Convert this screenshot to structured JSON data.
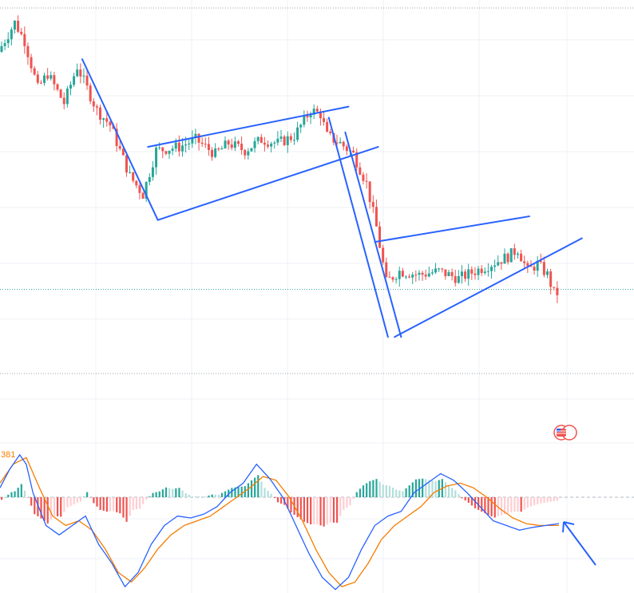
{
  "chart_data": [
    {
      "type": "candlestick",
      "title": "",
      "xlabel": "",
      "ylabel": "",
      "n_bars": 170,
      "ylim": [
        0,
        100
      ],
      "grid": true,
      "trend": {
        "bars": [
          0,
          5,
          8,
          12,
          15,
          20,
          24,
          30,
          34,
          40,
          44,
          48,
          55,
          60,
          66,
          70,
          75,
          80,
          85,
          90,
          95,
          98,
          100,
          104,
          108,
          112,
          115,
          118,
          122,
          128,
          134,
          140,
          145,
          150,
          155,
          158,
          161,
          164,
          167,
          169
        ],
        "values": [
          88,
          96,
          91,
          78,
          82,
          74,
          84,
          72,
          68,
          54,
          49,
          61,
          62,
          64,
          60,
          63,
          61,
          64,
          63,
          65,
          72,
          71,
          65,
          63,
          60,
          52,
          40,
          25,
          28,
          27,
          28,
          26,
          28,
          30,
          32,
          34,
          28,
          30,
          27,
          22
        ]
      },
      "channels": [
        {
          "name": "upper-1",
          "p1": [
            45,
            62
          ],
          "p2": [
            106,
            73
          ]
        },
        {
          "name": "lower-1",
          "p1": [
            48,
            42
          ],
          "p2": [
            115,
            62
          ]
        },
        {
          "name": "impulse-1",
          "p1": [
            25,
            86
          ],
          "p2": [
            48,
            42
          ]
        },
        {
          "name": "impulse-2",
          "p1": [
            100,
            70
          ],
          "p2": [
            118,
            10
          ]
        },
        {
          "name": "upper-2",
          "p1": [
            114,
            36
          ],
          "p2": [
            161,
            43
          ]
        },
        {
          "name": "lower-2",
          "p1": [
            120,
            10
          ],
          "p2": [
            177,
            37
          ]
        },
        {
          "name": "leg-2",
          "p1": [
            105,
            66
          ],
          "p2": [
            122,
            10
          ]
        }
      ],
      "price_line": 23,
      "badge": "flag-icon"
    },
    {
      "type": "macd",
      "title": "",
      "value_label": "381",
      "zero_line": 0,
      "ylim": [
        -1,
        1
      ],
      "macd": {
        "bars": [
          0,
          3,
          6,
          8,
          10,
          14,
          18,
          22,
          26,
          30,
          34,
          38,
          42,
          46,
          50,
          54,
          58,
          62,
          66,
          70,
          74,
          78,
          82,
          86,
          90,
          94,
          98,
          102,
          106,
          110,
          114,
          118,
          122,
          126,
          130,
          134,
          138,
          142,
          146,
          150,
          154,
          158,
          162,
          166,
          170
        ],
        "values": [
          0.1,
          0.3,
          0.45,
          0.35,
          0.05,
          -0.3,
          -0.4,
          -0.3,
          -0.2,
          -0.5,
          -0.7,
          -0.95,
          -0.8,
          -0.5,
          -0.3,
          -0.2,
          -0.22,
          -0.18,
          -0.1,
          0.05,
          0.15,
          0.35,
          0.2,
          0.0,
          -0.3,
          -0.6,
          -0.85,
          -0.98,
          -0.85,
          -0.55,
          -0.3,
          -0.2,
          -0.15,
          0.05,
          0.15,
          0.25,
          0.18,
          0.05,
          -0.1,
          -0.25,
          -0.3,
          -0.35,
          -0.32,
          -0.3,
          -0.28
        ]
      },
      "signal": {
        "bars": [
          0,
          4,
          8,
          12,
          16,
          20,
          24,
          28,
          32,
          36,
          40,
          44,
          48,
          52,
          56,
          60,
          64,
          68,
          72,
          76,
          80,
          84,
          88,
          92,
          96,
          100,
          104,
          108,
          112,
          116,
          120,
          124,
          128,
          132,
          136,
          140,
          144,
          148,
          152,
          156,
          160,
          164,
          168,
          170
        ],
        "values": [
          0.15,
          0.35,
          0.42,
          0.1,
          -0.2,
          -0.3,
          -0.25,
          -0.35,
          -0.55,
          -0.8,
          -0.9,
          -0.75,
          -0.55,
          -0.4,
          -0.3,
          -0.25,
          -0.2,
          -0.1,
          0.0,
          0.1,
          0.22,
          0.18,
          0.0,
          -0.25,
          -0.55,
          -0.8,
          -0.95,
          -0.9,
          -0.7,
          -0.45,
          -0.3,
          -0.2,
          -0.1,
          0.05,
          0.12,
          0.15,
          0.1,
          0.0,
          -0.12,
          -0.22,
          -0.28,
          -0.3,
          -0.3,
          -0.3
        ]
      },
      "histogram_colors": {
        "pos_strong": "#26a69a",
        "pos_weak": "#b2dfdb",
        "neg_strong": "#ef5350",
        "neg_weak": "#ffcdd2"
      }
    }
  ],
  "annotation": {
    "arrow": "arrow-pointing-up-left"
  },
  "colors": {
    "up": "#26a69a",
    "down": "#ef5350",
    "drawing": "#2962ff",
    "macd_line": "#2962ff",
    "signal_line": "#f57c00",
    "grid": "#eef1f4"
  }
}
